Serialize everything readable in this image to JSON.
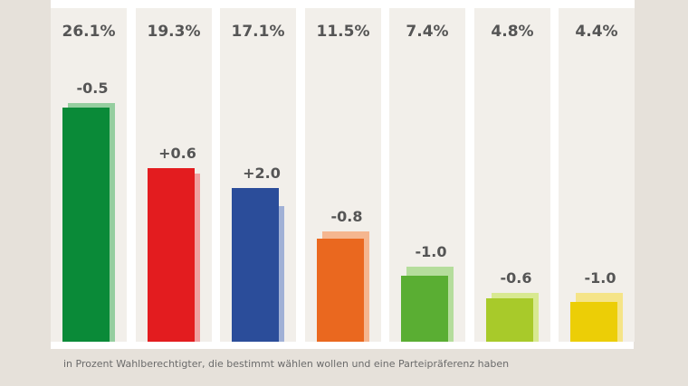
{
  "chart_data": {
    "type": "bar",
    "title": "",
    "xlabel": "",
    "ylabel": "",
    "ylim": [
      0,
      30
    ],
    "grid": false,
    "value_labels": [
      "26.1%",
      "19.3%",
      "17.1%",
      "11.5%",
      "7.4%",
      "4.8%",
      "4.4%"
    ],
    "values": [
      26.1,
      19.3,
      17.1,
      11.5,
      7.4,
      4.8,
      4.4
    ],
    "change_labels": [
      "-0.5",
      "+0.6",
      "+2.0",
      "-0.8",
      "-1.0",
      "-0.6",
      "-1.0"
    ],
    "changes": [
      -0.5,
      0.6,
      2.0,
      -0.8,
      -1.0,
      -0.6,
      -1.0
    ],
    "colors": [
      "#0a8a38",
      "#e31c1f",
      "#2b4d9a",
      "#ea681f",
      "#5aae33",
      "#a8ca2a",
      "#ecce06"
    ],
    "prev_colors": [
      "#95ce9f",
      "#f0a0a1",
      "#a1b1d6",
      "#f5b68f",
      "#b5dd9c",
      "#d8e991",
      "#f5e488"
    ],
    "footnote": "in Prozent Wahlberechtigter, die bestimmt wählen wollen und eine Parteipräferenz haben"
  }
}
